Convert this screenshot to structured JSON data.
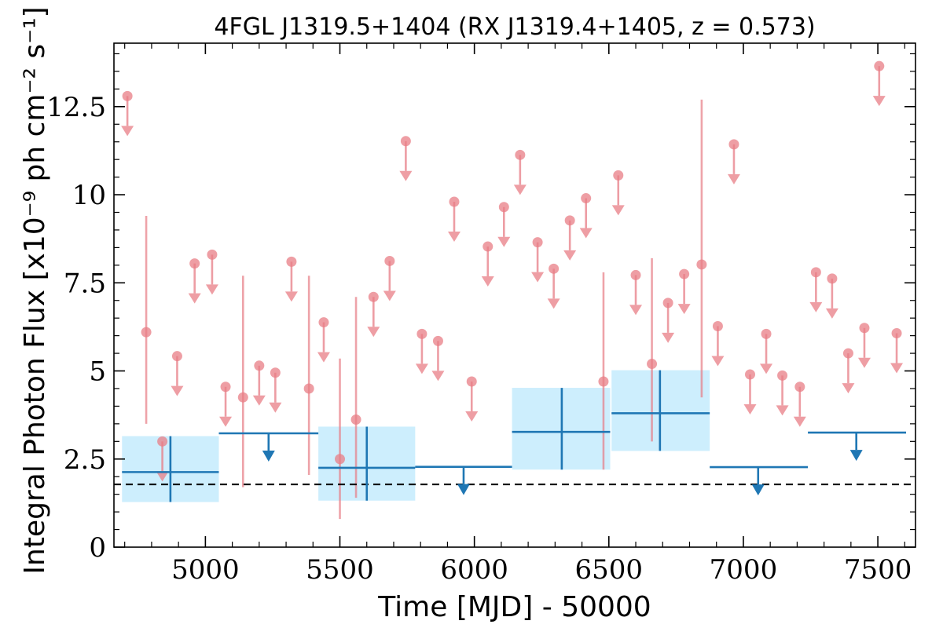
{
  "chart_data": {
    "type": "scatter",
    "title": "4FGL J1319.5+1404 (RX J1319.4+1405, z = 0.573)",
    "xlabel": "Time [MJD] - 50000",
    "ylabel": "Integral Photon Flux [x10⁻⁹ ph cm⁻² s⁻¹]",
    "xlim": [
      4660,
      7640
    ],
    "ylim": [
      0,
      14.3
    ],
    "x_ticks": [
      5000,
      5500,
      6000,
      6500,
      7000,
      7500
    ],
    "x_tick_labels": [
      "5000",
      "5500",
      "6000",
      "6500",
      "7000",
      "7500"
    ],
    "y_ticks": [
      0,
      2.5,
      5,
      7.5,
      10,
      12.5
    ],
    "y_tick_labels": [
      "0",
      "2.5",
      "5",
      "7.5",
      "10",
      "12.5"
    ],
    "grid": false,
    "reference_line": {
      "y": 1.78,
      "style": "dashed",
      "color": "#000000"
    },
    "colors": {
      "short_bins": "#e87d86",
      "long_bins": "#1f77b4",
      "long_band": "#cdeefd"
    },
    "short_bins": {
      "detections": [
        {
          "x": 4780,
          "y": 6.1,
          "ylo": 3.5,
          "yhi": 9.4
        },
        {
          "x": 5140,
          "y": 4.25,
          "ylo": 1.7,
          "yhi": 7.7
        },
        {
          "x": 5385,
          "y": 4.5,
          "ylo": 2.05,
          "yhi": 7.7
        },
        {
          "x": 5500,
          "y": 2.5,
          "ylo": 0.8,
          "yhi": 5.35
        },
        {
          "x": 5560,
          "y": 3.62,
          "ylo": 1.4,
          "yhi": 7.1
        },
        {
          "x": 6480,
          "y": 4.7,
          "ylo": 2.2,
          "yhi": 7.8
        },
        {
          "x": 6660,
          "y": 5.2,
          "ylo": 3.0,
          "yhi": 8.2
        },
        {
          "x": 6845,
          "y": 8.02,
          "ylo": 4.25,
          "yhi": 12.7
        }
      ],
      "upper_limits": [
        {
          "x": 4710,
          "y": 12.8
        },
        {
          "x": 4840,
          "y": 3.0
        },
        {
          "x": 4895,
          "y": 5.42
        },
        {
          "x": 4960,
          "y": 8.05
        },
        {
          "x": 5025,
          "y": 8.3
        },
        {
          "x": 5075,
          "y": 4.55
        },
        {
          "x": 5200,
          "y": 5.15
        },
        {
          "x": 5260,
          "y": 4.95
        },
        {
          "x": 5320,
          "y": 8.1
        },
        {
          "x": 5440,
          "y": 6.38
        },
        {
          "x": 5625,
          "y": 7.1
        },
        {
          "x": 5685,
          "y": 8.12
        },
        {
          "x": 5745,
          "y": 11.52
        },
        {
          "x": 5805,
          "y": 6.05
        },
        {
          "x": 5865,
          "y": 5.85
        },
        {
          "x": 5925,
          "y": 9.8
        },
        {
          "x": 5990,
          "y": 4.7
        },
        {
          "x": 6050,
          "y": 8.53
        },
        {
          "x": 6110,
          "y": 9.65
        },
        {
          "x": 6170,
          "y": 11.13
        },
        {
          "x": 6235,
          "y": 8.65
        },
        {
          "x": 6295,
          "y": 7.9
        },
        {
          "x": 6355,
          "y": 9.27
        },
        {
          "x": 6415,
          "y": 9.9
        },
        {
          "x": 6535,
          "y": 10.55
        },
        {
          "x": 6600,
          "y": 7.72
        },
        {
          "x": 6720,
          "y": 6.93
        },
        {
          "x": 6780,
          "y": 7.75
        },
        {
          "x": 6905,
          "y": 6.27
        },
        {
          "x": 6965,
          "y": 11.43
        },
        {
          "x": 7025,
          "y": 4.9
        },
        {
          "x": 7085,
          "y": 6.05
        },
        {
          "x": 7145,
          "y": 4.87
        },
        {
          "x": 7210,
          "y": 4.55
        },
        {
          "x": 7270,
          "y": 7.8
        },
        {
          "x": 7330,
          "y": 7.62
        },
        {
          "x": 7390,
          "y": 5.5
        },
        {
          "x": 7450,
          "y": 6.22
        },
        {
          "x": 7505,
          "y": 13.65
        },
        {
          "x": 7570,
          "y": 6.07
        }
      ]
    },
    "long_bins": {
      "detections": [
        {
          "x": 4870,
          "xlo": 4690,
          "xhi": 5050,
          "y": 2.13,
          "ylo": 1.28,
          "yhi": 3.15
        },
        {
          "x": 5600,
          "xlo": 5420,
          "xhi": 5780,
          "y": 2.25,
          "ylo": 1.32,
          "yhi": 3.42
        },
        {
          "x": 6325,
          "xlo": 6140,
          "xhi": 6505,
          "y": 3.27,
          "ylo": 2.2,
          "yhi": 4.52
        },
        {
          "x": 6690,
          "xlo": 6510,
          "xhi": 6875,
          "y": 3.8,
          "ylo": 2.73,
          "yhi": 5.02
        }
      ],
      "upper_limits": [
        {
          "x": 5235,
          "xlo": 5050,
          "xhi": 5420,
          "y": 3.23
        },
        {
          "x": 5960,
          "xlo": 5780,
          "xhi": 6140,
          "y": 2.28
        },
        {
          "x": 7055,
          "xlo": 6875,
          "xhi": 7240,
          "y": 2.27
        },
        {
          "x": 7420,
          "xlo": 7240,
          "xhi": 7605,
          "y": 3.25
        }
      ]
    }
  }
}
